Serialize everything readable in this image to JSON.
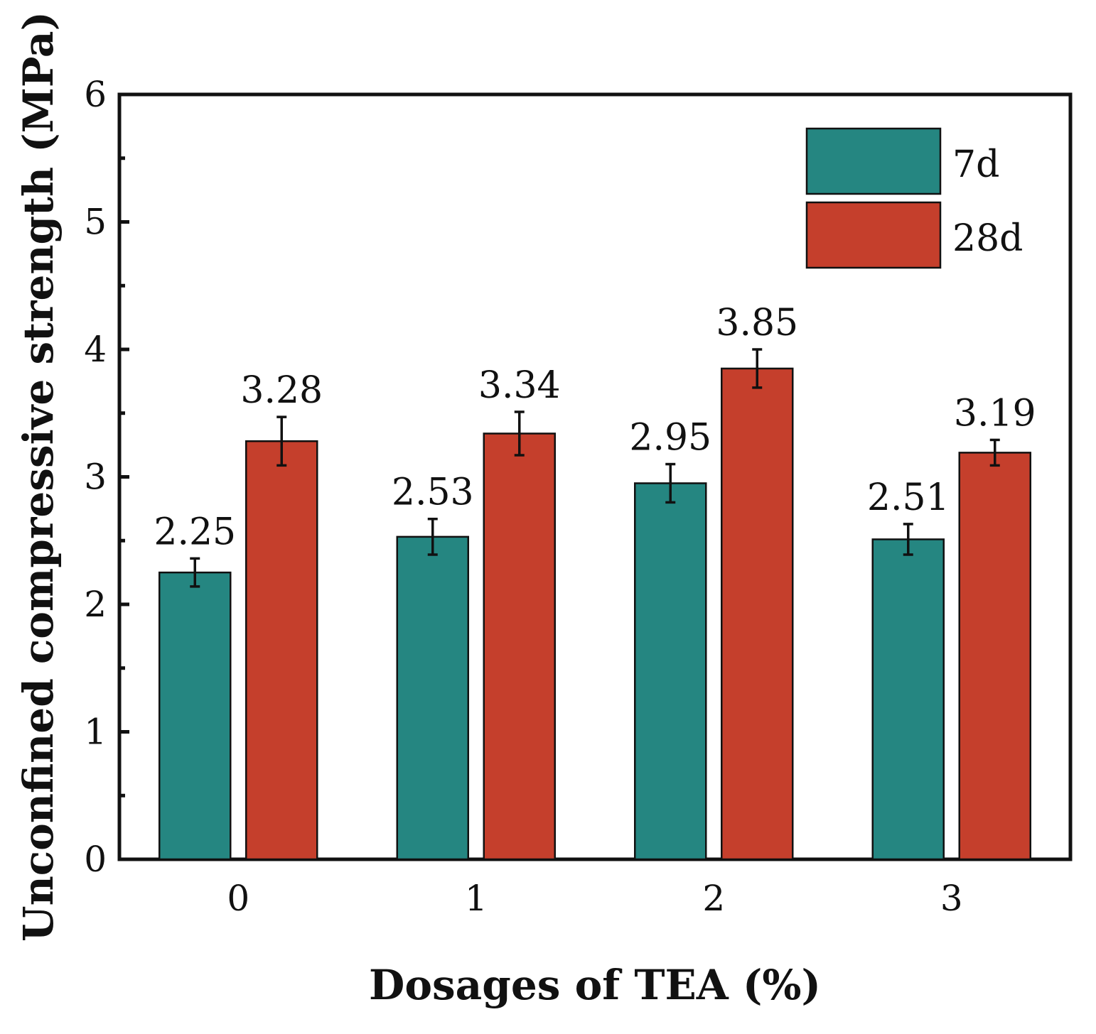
{
  "chart_data": {
    "type": "bar",
    "title": "",
    "xlabel": "Dosages of TEA (%)",
    "ylabel": "Unconfined compressive strength (MPa)",
    "categories": [
      "0",
      "1",
      "2",
      "3"
    ],
    "ylim": [
      0,
      6
    ],
    "yticks": [
      "0",
      "1",
      "2",
      "3",
      "4",
      "5",
      "6"
    ],
    "grid": false,
    "legend_position": "top-right",
    "series": [
      {
        "name": "7d",
        "color": "#258681",
        "values": [
          2.25,
          2.53,
          2.95,
          2.51
        ],
        "errors": [
          0.11,
          0.14,
          0.15,
          0.12
        ],
        "labels": [
          "2.25",
          "2.53",
          "2.95",
          "2.51"
        ]
      },
      {
        "name": "28d",
        "color": "#c53f2c",
        "values": [
          3.28,
          3.34,
          3.85,
          3.19
        ],
        "errors": [
          0.19,
          0.17,
          0.15,
          0.1
        ],
        "labels": [
          "3.28",
          "3.34",
          "3.85",
          "3.19"
        ]
      }
    ]
  }
}
